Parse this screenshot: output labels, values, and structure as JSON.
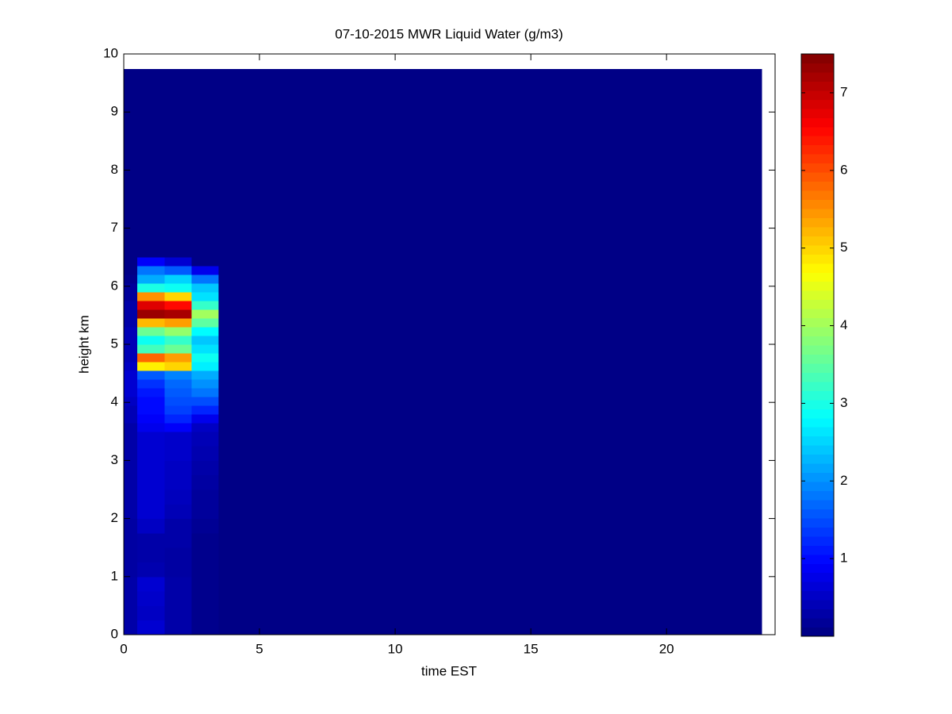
{
  "chart_data": {
    "type": "heatmap",
    "title": "07-10-2015 MWR Liquid Water (g/m3)",
    "x_label": "time EST",
    "y_label": "height km",
    "x_edges": [
      0,
      0.5,
      1.5,
      2.5,
      3.5,
      23.5
    ],
    "y_edges": [
      0,
      0.25,
      0.5,
      0.75,
      1.0,
      1.25,
      1.5,
      1.75,
      2.0,
      2.25,
      2.5,
      2.75,
      3.0,
      3.25,
      3.5,
      3.65,
      3.8,
      3.95,
      4.1,
      4.25,
      4.4,
      4.55,
      4.7,
      4.85,
      5.0,
      5.15,
      5.3,
      5.45,
      5.6,
      5.75,
      5.9,
      6.05,
      6.2,
      6.35,
      6.5,
      9.74
    ],
    "z": [
      [
        0.3,
        0.6,
        0.3,
        0.1,
        0.05
      ],
      [
        0.3,
        0.5,
        0.3,
        0.1,
        0.05
      ],
      [
        0.3,
        0.55,
        0.3,
        0.1,
        0.05
      ],
      [
        0.3,
        0.6,
        0.3,
        0.1,
        0.05
      ],
      [
        0.25,
        0.35,
        0.25,
        0.1,
        0.05
      ],
      [
        0.25,
        0.3,
        0.25,
        0.1,
        0.05
      ],
      [
        0.25,
        0.3,
        0.3,
        0.1,
        0.05
      ],
      [
        0.25,
        0.5,
        0.3,
        0.15,
        0.05
      ],
      [
        0.3,
        0.6,
        0.4,
        0.2,
        0.05
      ],
      [
        0.3,
        0.6,
        0.45,
        0.2,
        0.05
      ],
      [
        0.3,
        0.6,
        0.5,
        0.25,
        0.05
      ],
      [
        0.3,
        0.6,
        0.5,
        0.3,
        0.05
      ],
      [
        0.3,
        0.6,
        0.55,
        0.35,
        0.05
      ],
      [
        0.3,
        0.6,
        0.55,
        0.4,
        0.05
      ],
      [
        0.3,
        0.8,
        0.9,
        0.5,
        0.05
      ],
      [
        0.4,
        0.9,
        1.2,
        0.8,
        0.05
      ],
      [
        0.4,
        1.0,
        1.4,
        1.2,
        0.05
      ],
      [
        0.5,
        1.0,
        1.5,
        1.5,
        0.05
      ],
      [
        0.6,
        1.1,
        1.6,
        1.8,
        0.05
      ],
      [
        0.6,
        1.3,
        1.7,
        2.0,
        0.05
      ],
      [
        0.6,
        1.6,
        1.9,
        2.2,
        0.05
      ],
      [
        0.5,
        4.8,
        5.0,
        2.7,
        0.05
      ],
      [
        0.4,
        5.8,
        5.4,
        2.9,
        0.05
      ],
      [
        0.4,
        3.3,
        3.6,
        2.6,
        0.05
      ],
      [
        0.4,
        2.9,
        3.2,
        2.4,
        0.05
      ],
      [
        0.4,
        3.6,
        3.9,
        2.8,
        0.05
      ],
      [
        0.3,
        5.2,
        5.4,
        3.5,
        0.05
      ],
      [
        0.3,
        7.3,
        7.2,
        4.0,
        0.05
      ],
      [
        0.3,
        6.8,
        6.5,
        3.2,
        0.05
      ],
      [
        0.2,
        5.5,
        5.0,
        2.6,
        0.05
      ],
      [
        0.2,
        3.0,
        2.9,
        2.4,
        0.05
      ],
      [
        0.1,
        2.2,
        2.5,
        1.8,
        0.05
      ],
      [
        0.05,
        1.8,
        1.6,
        0.8,
        0.05
      ],
      [
        0.05,
        0.9,
        0.6,
        0.05,
        0.05
      ],
      [
        0.05,
        0.05,
        0.05,
        0.05,
        0.05
      ]
    ],
    "colormap": "jet",
    "clim": [
      0,
      7.5
    ],
    "xlim": [
      0,
      24
    ],
    "xticks": [
      0,
      5,
      10,
      15,
      20
    ],
    "ylim": [
      0,
      10
    ],
    "yticks": [
      0,
      1,
      2,
      3,
      4,
      5,
      6,
      7,
      8,
      9,
      10
    ],
    "cticks": [
      1,
      2,
      3,
      4,
      5,
      6,
      7
    ]
  }
}
